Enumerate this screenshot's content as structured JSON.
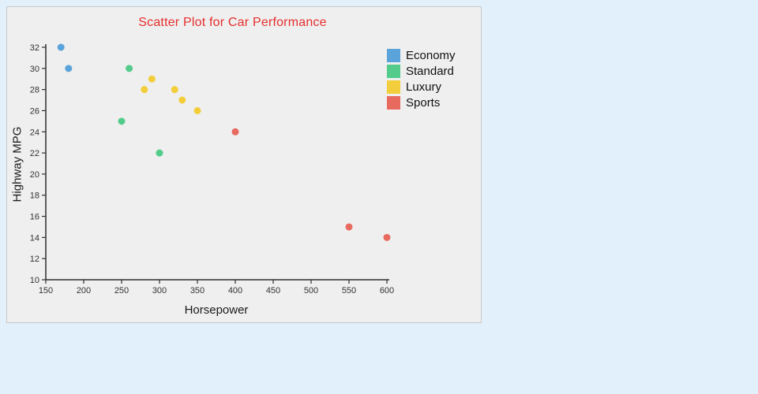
{
  "page": {
    "background": "#E2F0FB"
  },
  "panel": {
    "background": "#EFEFEF",
    "border_color": "#C8C8C8"
  },
  "chart_data": {
    "type": "scatter",
    "title": "Scatter Plot for Car Performance",
    "title_color": "#E62E2E",
    "xlabel": "Horsepower",
    "ylabel": "Highway MPG",
    "xlim": [
      150,
      600
    ],
    "ylim": [
      10,
      32
    ],
    "x_ticks": [
      150,
      200,
      250,
      300,
      350,
      400,
      450,
      500,
      550,
      600
    ],
    "y_ticks": [
      10,
      12,
      14,
      16,
      18,
      20,
      22,
      24,
      26,
      28,
      30,
      32
    ],
    "grid": false,
    "legend_position": "upper right",
    "axis_color": "#2E2E2E",
    "marker_radius": 4.5,
    "series": [
      {
        "name": "Economy",
        "color": "#5AA3DB",
        "points": [
          [
            170,
            32
          ],
          [
            180,
            30
          ]
        ]
      },
      {
        "name": "Standard",
        "color": "#53CC8B",
        "points": [
          [
            260,
            30
          ],
          [
            250,
            25
          ],
          [
            300,
            22
          ]
        ]
      },
      {
        "name": "Luxury",
        "color": "#F3CE3C",
        "points": [
          [
            290,
            29
          ],
          [
            280,
            28
          ],
          [
            320,
            28
          ],
          [
            330,
            27
          ],
          [
            350,
            26
          ]
        ]
      },
      {
        "name": "Sports",
        "color": "#E8695E",
        "points": [
          [
            400,
            24
          ],
          [
            550,
            15
          ],
          [
            600,
            14
          ]
        ]
      }
    ]
  }
}
